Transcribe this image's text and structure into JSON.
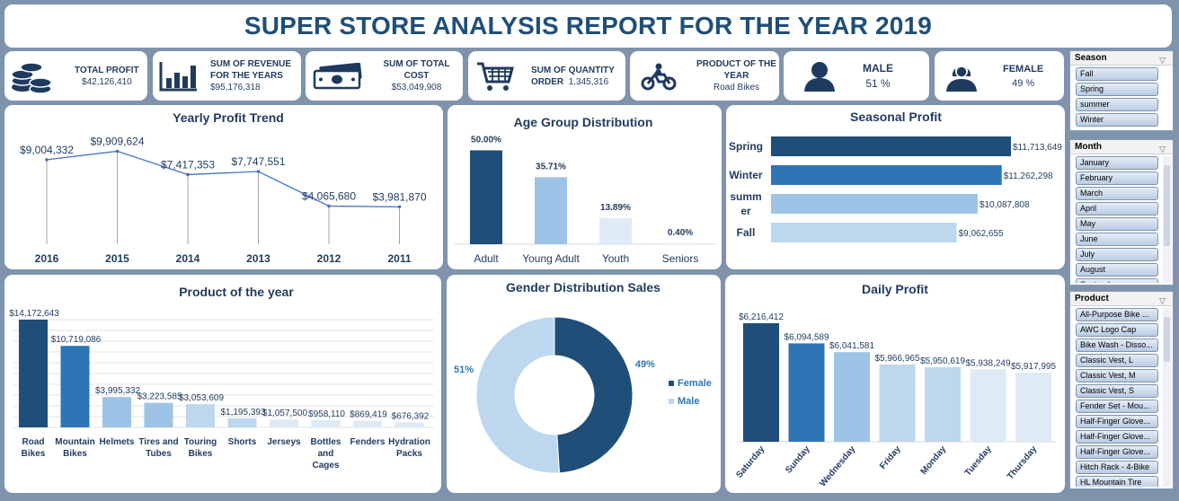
{
  "title": "SUPER STORE ANALYSIS REPORT FOR THE YEAR 2019",
  "kpis": {
    "profit": {
      "label": "TOTAL PROFIT",
      "value": "$42,126,410",
      "icon": "coins-icon"
    },
    "revenue": {
      "label_1": "SUM OF REVENUE",
      "label_2": "FOR THE YEARS",
      "value": "$95,176,318",
      "icon": "bar-chart-icon"
    },
    "cost": {
      "label": "SUM OF TOTAL COST",
      "value": "$53,049,908",
      "icon": "cash-icon"
    },
    "quantity": {
      "label_1": "SUM OF QUANTITY",
      "label_2": "ORDER",
      "value": "1,345,316",
      "icon": "shopping-cart-icon"
    },
    "product": {
      "label_1": "PRODUCT OF THE",
      "label_2": "YEAR",
      "value": "Road Bikes",
      "icon": "motorbike-icon"
    },
    "male": {
      "label": "MALE",
      "value": "51 %",
      "icon": "male-user-icon"
    },
    "female": {
      "label": "FEMALE",
      "value": "49 %",
      "icon": "female-user-icon"
    }
  },
  "slicers": {
    "season": {
      "title": "Season",
      "items": [
        "Fall",
        "Spring",
        "summer",
        "Winter"
      ]
    },
    "month": {
      "title": "Month",
      "items": [
        "January",
        "February",
        "March",
        "April",
        "May",
        "June",
        "July",
        "August",
        "September"
      ]
    },
    "product": {
      "title": "Product",
      "items": [
        "All-Purpose Bike ...",
        "AWC Logo Cap",
        "Bike Wash - Disso...",
        "Classic Vest, L",
        "Classic Vest, M",
        "Classic Vest, S",
        "Fender Set - Mou...",
        "Half-Finger Glove...",
        "Half-Finger Glove...",
        "Half-Finger Glove...",
        "Hitch Rack - 4-Bike",
        "HL Mountain Tire"
      ]
    }
  },
  "chart_data": [
    {
      "id": "yearly",
      "type": "line",
      "title": "Yearly Profit Trend",
      "categories": [
        "2016",
        "2015",
        "2014",
        "2013",
        "2012",
        "2011"
      ],
      "values": [
        9004332,
        9909624,
        7417353,
        7747551,
        4065680,
        3981870
      ],
      "labels": [
        "$9,004,332",
        "$9,909,624",
        "$7,417,353",
        "$7,747,551",
        "$4,065,680",
        "$3,981,870"
      ],
      "ylim": [
        0,
        11000000
      ],
      "color": "#4472c4"
    },
    {
      "id": "age",
      "type": "bar",
      "title": "Age Group Distribution",
      "categories": [
        "Adult",
        "Young Adult",
        "Youth",
        "Seniors"
      ],
      "values": [
        50.0,
        35.71,
        13.89,
        0.4
      ],
      "labels": [
        "50.00%",
        "35.71%",
        "13.89%",
        "0.40%"
      ],
      "colors": [
        "#1f4e79",
        "#9dc3e6",
        "#deebf7",
        "#deebf7"
      ],
      "ylim": [
        0,
        55
      ]
    },
    {
      "id": "seasonal",
      "type": "bar",
      "orientation": "horizontal",
      "title": "Seasonal Profit",
      "categories": [
        "Spring",
        "Winter",
        "summer",
        "Fall"
      ],
      "values": [
        11713649,
        11262298,
        10087808,
        9062655
      ],
      "labels": [
        "$11,713,649",
        "$11,262,298",
        "$10,087,808",
        "$9,062,655"
      ],
      "colors": [
        "#1f4e79",
        "#2e75b6",
        "#9dc3e6",
        "#bdd7ee"
      ],
      "xlim": [
        0,
        11713649
      ]
    },
    {
      "id": "product",
      "type": "bar",
      "title": "Product of the year",
      "categories": [
        "Road Bikes",
        "Mountain Bikes",
        "Helmets",
        "Tires and Tubes",
        "Touring Bikes",
        "Shorts",
        "Jerseys",
        "Bottles and Cages",
        "Fenders",
        "Hydration Packs"
      ],
      "values": [
        14172643,
        10719086,
        3995332,
        3223585,
        3053609,
        1195393,
        1057500,
        958110,
        869419,
        676392
      ],
      "labels": [
        "$14,172,643",
        "$10,719,086",
        "$3,995,332",
        "$3,223,585",
        "$3,053,609",
        "$1,195,393",
        "$1,057,500",
        "$958,110",
        "$869,419",
        "$676,392"
      ],
      "colors": [
        "#1f4e79",
        "#2e75b6",
        "#9dc3e6",
        "#9dc3e6",
        "#bdd7ee",
        "#bdd7ee",
        "#deebf7",
        "#deebf7",
        "#deebf7",
        "#deebf7"
      ],
      "ylim": [
        0,
        14172643
      ]
    },
    {
      "id": "gender",
      "type": "pie",
      "title": "Gender Distribution Sales",
      "categories": [
        "Female",
        "Male"
      ],
      "values": [
        49,
        51
      ],
      "labels": [
        "49%",
        "51%"
      ],
      "colors": [
        "#1f4e79",
        "#bdd7ee"
      ],
      "legend": "right"
    },
    {
      "id": "daily",
      "type": "bar",
      "title": "Daily Profit",
      "categories": [
        "Saturday",
        "Sunday",
        "Wednesday",
        "Friday",
        "Monday",
        "Tuesday",
        "Thursday"
      ],
      "values": [
        6216412,
        6094589,
        6041581,
        5966965,
        5950619,
        5938249,
        5917995
      ],
      "labels": [
        "$6,216,412",
        "$6,094,589",
        "$6,041,581",
        "$5,966,965",
        "$5,950,619",
        "$5,938,249",
        "$5,917,995"
      ],
      "colors": [
        "#1f4e79",
        "#2e75b6",
        "#9dc3e6",
        "#bdd7ee",
        "#bdd7ee",
        "#deebf7",
        "#deebf7"
      ],
      "ylim": [
        5500000,
        6216412
      ]
    }
  ]
}
